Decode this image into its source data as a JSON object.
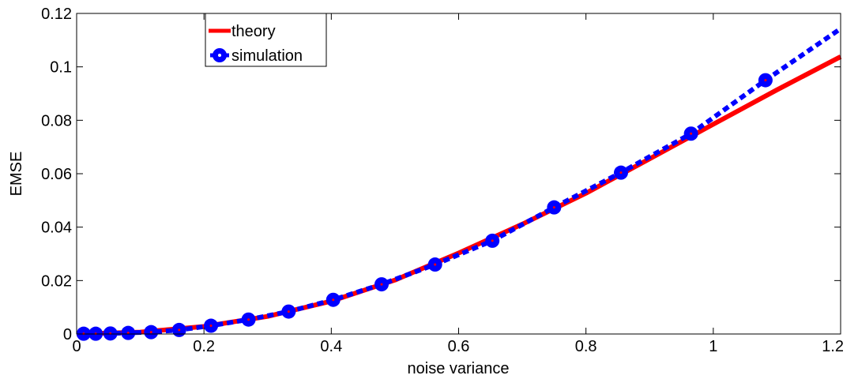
{
  "chart_data": {
    "type": "line",
    "xlabel": "noise variance",
    "ylabel": "EMSE",
    "xlim": [
      0,
      1.2
    ],
    "ylim": [
      0,
      0.12
    ],
    "xticks": [
      0,
      0.2,
      0.4,
      0.6,
      0.8,
      1,
      1.2
    ],
    "xtick_labels": [
      "0",
      "0.2",
      "0.4",
      "0.6",
      "0.8",
      "1",
      "1.2"
    ],
    "yticks": [
      0,
      0.02,
      0.04,
      0.06,
      0.08,
      0.1,
      0.12
    ],
    "ytick_labels": [
      "0",
      "0.02",
      "0.04",
      "0.06",
      "0.08",
      "0.1",
      "0.12"
    ],
    "grid": false,
    "legend_position": "top-left",
    "series": [
      {
        "name": "theory",
        "style": "solid",
        "color": "#ff0000",
        "x": [
          0.0,
          0.1,
          0.2,
          0.3,
          0.4,
          0.5,
          0.6,
          0.7,
          0.8,
          0.9,
          1.0,
          1.1,
          1.2
        ],
        "y": [
          0.0,
          0.0007,
          0.0028,
          0.0066,
          0.0123,
          0.0202,
          0.0303,
          0.0411,
          0.0527,
          0.0656,
          0.0785,
          0.0914,
          0.1038
        ]
      },
      {
        "name": "simulation",
        "style": "dotted",
        "marker": "circle",
        "color": "#0000ff",
        "x": [
          0.011,
          0.03,
          0.053,
          0.081,
          0.117,
          0.161,
          0.211,
          0.27,
          0.333,
          0.403,
          0.479,
          0.563,
          0.653,
          0.75,
          0.855,
          0.965,
          1.082,
          1.2
        ],
        "y": [
          0.0001,
          0.0001,
          0.0002,
          0.0004,
          0.0007,
          0.0015,
          0.0031,
          0.0054,
          0.0084,
          0.0128,
          0.0186,
          0.026,
          0.0349,
          0.0474,
          0.0604,
          0.075,
          0.095,
          0.1143
        ]
      }
    ]
  }
}
